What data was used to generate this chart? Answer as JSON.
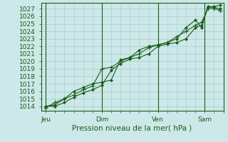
{
  "background_color": "#cce8e8",
  "plot_bg_color": "#cce8e8",
  "grid_color": "#aacccc",
  "line_color": "#1a5c1a",
  "marker_color": "#1a5c1a",
  "title": "Pression niveau de la mer( hPa )",
  "ylabel_fontsize": 6.5,
  "xlabel_fontsize": 7.5,
  "tick_label_fontsize": 6.5,
  "yticks": [
    1014,
    1015,
    1016,
    1017,
    1018,
    1019,
    1020,
    1021,
    1022,
    1023,
    1024,
    1025,
    1026,
    1027
  ],
  "ylim": [
    1013.4,
    1027.8
  ],
  "xtick_labels": [
    "Jeu",
    "Dim",
    "Ven",
    "Sam"
  ],
  "xtick_positions": [
    0,
    36,
    72,
    102
  ],
  "xlim": [
    -3,
    114
  ],
  "num_minor_x": 6,
  "series1_x": [
    0,
    6,
    12,
    18,
    24,
    30,
    36,
    42,
    48,
    54,
    60,
    66,
    72,
    78,
    84,
    90,
    96,
    100,
    104,
    108,
    112
  ],
  "series1_y": [
    1014.0,
    1014.0,
    1014.5,
    1015.2,
    1015.8,
    1016.2,
    1016.8,
    1018.8,
    1019.7,
    1020.3,
    1020.5,
    1021.0,
    1022.0,
    1022.3,
    1022.5,
    1023.0,
    1024.5,
    1024.8,
    1027.2,
    1027.2,
    1027.0
  ],
  "series2_x": [
    0,
    6,
    12,
    18,
    24,
    30,
    36,
    42,
    48,
    54,
    60,
    66,
    72,
    78,
    84,
    90,
    96,
    100,
    104,
    108,
    112
  ],
  "series2_y": [
    1013.8,
    1014.5,
    1015.0,
    1015.5,
    1016.2,
    1016.7,
    1019.0,
    1019.2,
    1020.0,
    1020.5,
    1021.0,
    1021.8,
    1022.2,
    1022.5,
    1023.3,
    1024.0,
    1024.8,
    1025.2,
    1027.0,
    1027.0,
    1026.8
  ],
  "series3_x": [
    0,
    6,
    12,
    18,
    24,
    30,
    36,
    42,
    48,
    54,
    60,
    66,
    72,
    78,
    84,
    90,
    96,
    100,
    104,
    108,
    112
  ],
  "series3_y": [
    1014.0,
    1014.2,
    1015.0,
    1016.0,
    1016.5,
    1017.0,
    1017.2,
    1017.5,
    1020.2,
    1020.5,
    1021.5,
    1022.0,
    1022.2,
    1022.5,
    1023.0,
    1024.5,
    1025.5,
    1024.5,
    1027.3,
    1027.3,
    1027.5
  ],
  "vline_positions": [
    0,
    36,
    72,
    102
  ]
}
